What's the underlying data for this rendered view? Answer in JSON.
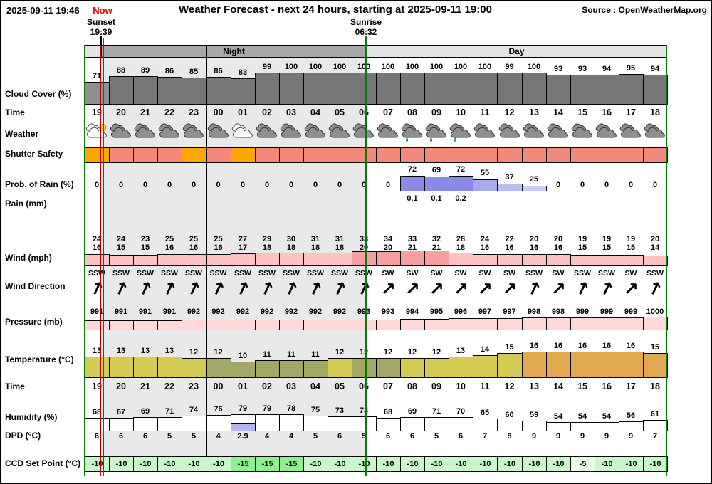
{
  "header": {
    "generated_at": "2025-09-11 19:46",
    "now_label": "Now",
    "title": "Weather Forecast - next 24 hours, starting at 2025-09-11 19:00",
    "source": "Source : OpenWeatherMap.org",
    "sunset_label": "Sunset",
    "sunset_time": "19:39",
    "sunrise_label": "Sunrise",
    "sunrise_time": "06:32",
    "night_label": "Night",
    "day_label": "Day"
  },
  "row_labels": {
    "cloud": "Cloud Cover (%)",
    "time": "Time",
    "weather": "Weather",
    "shutter": "Shutter Safety",
    "prob": "Prob. of Rain (%)",
    "rain": "Rain (mm)",
    "wind": "Wind (mph)",
    "winddir": "Wind Direction",
    "pressure": "Pressure (mb)",
    "temp": "Temperature (°C)",
    "time2": "Time",
    "humidity": "Humidity (%)",
    "dpd": "DPD (°C)",
    "ccd": "CCD Set Point (°C)"
  },
  "chart_data": {
    "type": "meteogram",
    "title": "Weather Forecast - next 24 hours, starting at 2025-09-11 19:00",
    "hours": [
      "19",
      "20",
      "21",
      "22",
      "23",
      "00",
      "01",
      "02",
      "03",
      "04",
      "05",
      "06",
      "07",
      "08",
      "09",
      "10",
      "11",
      "12",
      "13",
      "14",
      "15",
      "16",
      "17",
      "18"
    ],
    "cloud_cover_pct": [
      71,
      88,
      89,
      86,
      85,
      86,
      83,
      99,
      100,
      100,
      100,
      100,
      100,
      100,
      100,
      100,
      100,
      99,
      100,
      93,
      93,
      94,
      95,
      94
    ],
    "weather_icons": [
      "cloud-sun",
      "cloud",
      "cloud",
      "cloud",
      "cloud",
      "cloud",
      "cloud-night",
      "cloud",
      "cloud",
      "cloud",
      "cloud",
      "cloud",
      "cloud",
      "rain-cloud",
      "rain-cloud",
      "rain-cloud",
      "cloud",
      "cloud",
      "cloud",
      "cloud",
      "cloud",
      "cloud",
      "cloud",
      "cloud"
    ],
    "shutter_safety": [
      "orange",
      "red",
      "red",
      "red",
      "orange",
      "red",
      "orange",
      "red",
      "red",
      "red",
      "red",
      "red",
      "red",
      "red",
      "red",
      "red",
      "red",
      "red",
      "red",
      "red",
      "red",
      "red",
      "red",
      "red"
    ],
    "prob_rain_pct": [
      0,
      0,
      0,
      0,
      0,
      0,
      0,
      0,
      0,
      0,
      0,
      0,
      0,
      72,
      69,
      72,
      55,
      37,
      25,
      0,
      0,
      0,
      0,
      0
    ],
    "rain_mm": [
      "",
      "",
      "",
      "",
      "",
      "",
      "",
      "",
      "",
      "",
      "",
      "",
      "",
      "0.1",
      "0.1",
      "0.2",
      "",
      "",
      "",
      "",
      "",
      "",
      "",
      ""
    ],
    "wind_gust_mph": [
      24,
      24,
      23,
      25,
      25,
      25,
      27,
      29,
      30,
      31,
      31,
      33,
      34,
      33,
      32,
      28,
      24,
      22,
      20,
      20,
      19,
      19,
      19,
      20
    ],
    "wind_speed_mph": [
      16,
      15,
      15,
      16,
      16,
      16,
      17,
      18,
      18,
      18,
      18,
      20,
      20,
      21,
      21,
      18,
      16,
      16,
      16,
      16,
      15,
      15,
      15,
      14
    ],
    "wind_dir": [
      "SSW",
      "SSW",
      "SSW",
      "SSW",
      "SSW",
      "SSW",
      "SSW",
      "SSW",
      "SSW",
      "SSW",
      "SSW",
      "SSW",
      "SW",
      "SW",
      "SW",
      "SW",
      "SW",
      "SW",
      "SSW",
      "SW",
      "SSW",
      "SSW",
      "SW",
      "SSW"
    ],
    "pressure_mb": [
      991,
      991,
      991,
      991,
      992,
      992,
      992,
      992,
      992,
      992,
      992,
      993,
      993,
      994,
      995,
      996,
      997,
      997,
      998,
      998,
      999,
      999,
      999,
      1000
    ],
    "temperature_c": [
      13,
      13,
      13,
      13,
      12,
      12,
      10,
      11,
      11,
      11,
      12,
      12,
      12,
      12,
      12,
      13,
      14,
      15,
      16,
      16,
      16,
      16,
      16,
      15
    ],
    "temp_colors": [
      "khaki",
      "khaki",
      "khaki",
      "khaki",
      "khaki",
      "olive",
      "olive",
      "olive",
      "olive",
      "olive",
      "khaki",
      "olive",
      "olive",
      "khaki",
      "khaki",
      "khaki",
      "khaki",
      "khaki",
      "orange",
      "orange",
      "orange",
      "orange",
      "orange",
      "orange"
    ],
    "humidity_pct": [
      68,
      67,
      69,
      71,
      74,
      76,
      79,
      79,
      78,
      75,
      73,
      73,
      68,
      69,
      71,
      70,
      65,
      60,
      59,
      54,
      54,
      54,
      56,
      61
    ],
    "dpd_c": [
      6,
      6,
      6,
      5,
      5,
      4,
      2.9,
      4,
      4,
      5,
      6,
      5,
      6,
      6,
      5,
      6,
      7,
      8,
      9,
      9,
      9,
      9,
      9,
      7
    ],
    "ccd_setpoint_c": [
      -10,
      -10,
      -10,
      -10,
      -10,
      -10,
      -15,
      -15,
      -15,
      -10,
      -10,
      -10,
      -10,
      -10,
      -10,
      -10,
      -10,
      -10,
      -10,
      -10,
      -5,
      -10,
      -10,
      -10
    ]
  },
  "colors": {
    "night_band": "#a9a9a9",
    "day_band": "#e4e4e4",
    "night_bg": "#e9e9e9",
    "cloud_bar": "#767676",
    "cloud_bar_first": "#8f8f8f",
    "shutter_orange": "#ffa500",
    "shutter_red": "#f4887b",
    "prob_60": "#8a8ae8",
    "prob_45": "#a9a9f0",
    "prob_30": "#bcbcf5",
    "prob_low": "#cdcdf9",
    "wind_bar": "#ffc2c2",
    "wind_bar_strong": "#f59f9f",
    "pressure_bar": "#ffd9d9",
    "temp_khaki": "#d5ca54",
    "temp_olive": "#a3a766",
    "temp_orange": "#e0a94f",
    "humidity_bar": "#ffffff",
    "dpd_alert": "#b5b5f2",
    "ccd_minus10": "#c9f7c9",
    "ccd_minus15": "#8ef08e",
    "ccd_minus5": "#e9ffe9",
    "now_line": "#f00000",
    "sun_line": "#0a7a0a",
    "midnight_line": "#000000"
  }
}
